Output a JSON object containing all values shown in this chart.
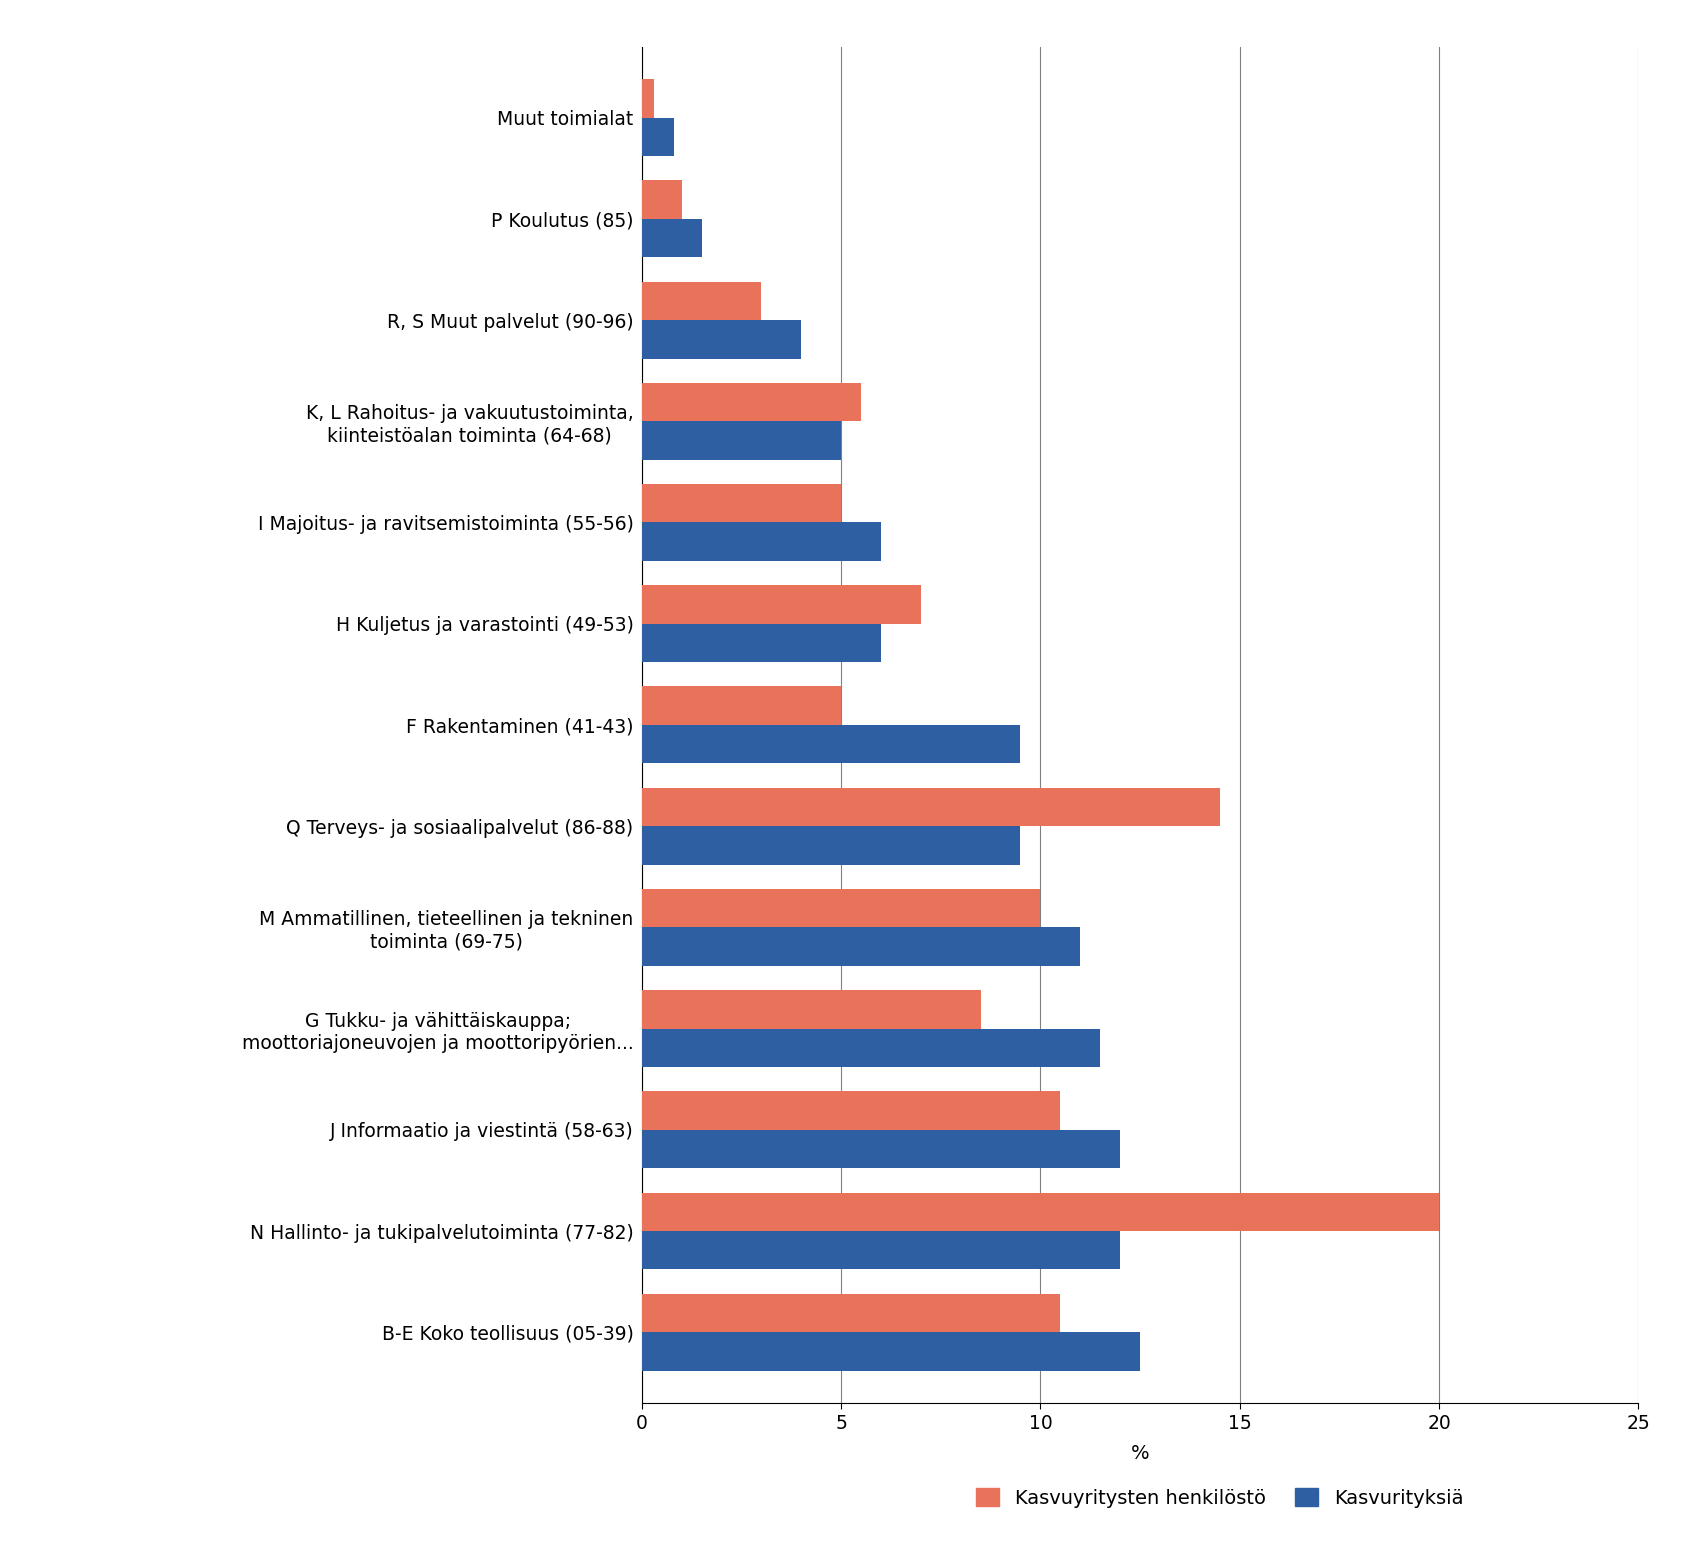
{
  "categories": [
    "B-E Koko teollisuus (05-39)",
    "N Hallinto- ja tukipalvelutoiminta (77-82)",
    "J Informaatio ja viestintä (58-63)",
    "G Tukku- ja vähittäiskauppa;\nmoottoriajoneuvojen ja moottoripyörien...",
    "M Ammatillinen, tieteellinen ja tekninen\ntoiminta (69-75)",
    "Q Terveys- ja sosiaalipalvelut (86-88)",
    "F Rakentaminen (41-43)",
    "H Kuljetus ja varastointi (49-53)",
    "I Majoitus- ja ravitsemistoiminta (55-56)",
    "K, L Rahoitus- ja vakuutustoiminta,\nkiinteistöalan toiminta (64-68)",
    "R, S Muut palvelut (90-96)",
    "P Koulutus (85)",
    "Muut toimialat"
  ],
  "henkilosto": [
    10.5,
    20.0,
    10.5,
    8.5,
    10.0,
    14.5,
    5.0,
    7.0,
    5.0,
    5.5,
    3.0,
    1.0,
    0.3
  ],
  "yrityksia": [
    12.5,
    12.0,
    12.0,
    11.5,
    11.0,
    9.5,
    9.5,
    6.0,
    6.0,
    5.0,
    4.0,
    1.5,
    0.8
  ],
  "color_henkilosto": "#E8735A",
  "color_yrityksia": "#2E5FA3",
  "xlabel": "%",
  "xlim": [
    0,
    25
  ],
  "xticks": [
    0,
    5,
    10,
    15,
    20,
    25
  ],
  "legend_henkilosto": "Kasvuyritysten henkilöstö",
  "legend_yrityksia": "Kasvurityksiä",
  "figsize": [
    16.89,
    15.59
  ],
  "dpi": 100
}
